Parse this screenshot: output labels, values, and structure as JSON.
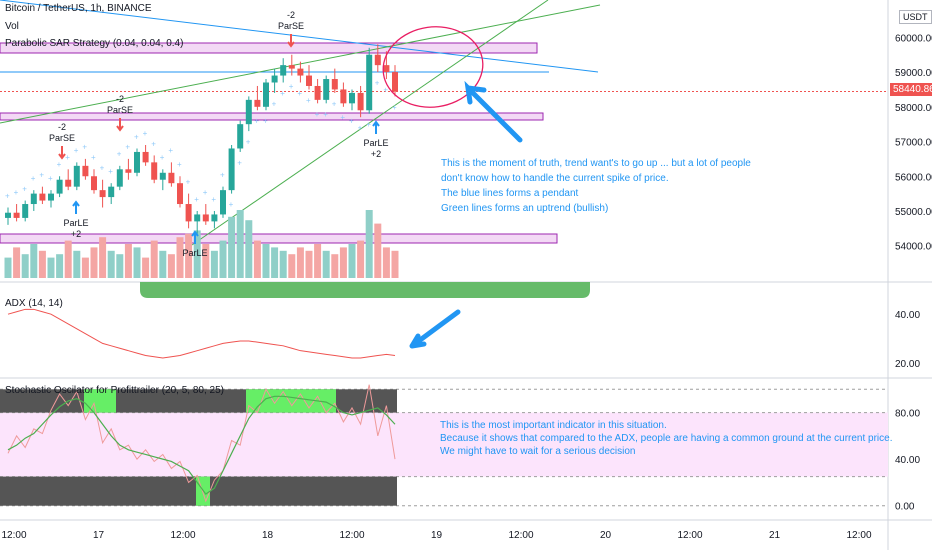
{
  "header": {
    "symbol": "Bitcoin / TetherUS, 1h, BINANCE",
    "vol_label": "Vol",
    "strategy_label": "Parabolic SAR Strategy (0.04, 0.04, 0.4)",
    "adx_label": "ADX (14, 14)",
    "stoch_label": "Stochastic Oscilator for Profittrailer (20, 5, 80, 25)",
    "currency_box": "USDT"
  },
  "price_axis": {
    "ticks": [
      "60000.00",
      "59000.00",
      "58000.00",
      "57000.00",
      "56000.00",
      "55000.00",
      "54000.00"
    ],
    "tick_values": [
      60000,
      59000,
      58000,
      57000,
      56000,
      55000,
      54000
    ],
    "current_price": "58440.86"
  },
  "adx_axis": {
    "ticks": [
      "40.00",
      "20.00"
    ],
    "tick_values": [
      40,
      20
    ]
  },
  "stoch_axis": {
    "ticks": [
      "80.00",
      "40.00",
      "0.00"
    ],
    "tick_values": [
      80,
      40,
      0
    ]
  },
  "time_axis": {
    "labels": [
      "12:00",
      "17",
      "12:00",
      "18",
      "12:00",
      "19",
      "12:00",
      "20",
      "12:00",
      "21",
      "12:00"
    ]
  },
  "signals": [
    {
      "text1": "-2",
      "text2": "ParSE"
    },
    {
      "text1": "-2",
      "text2": "ParSE"
    },
    {
      "text1": "-2",
      "text2": "ParSE"
    },
    {
      "text1": "ParLE",
      "text2": "+2"
    },
    {
      "text1": "ParLE",
      "text2": ""
    },
    {
      "text1": "ParLE",
      "text2": "+2"
    }
  ],
  "annotations": {
    "main": [
      "This is the moment of truth, trend want's to go up ... but a lot of people",
      "don't know how to handle the current spike of price.",
      "The blue lines forms a pendant",
      "Green lines forms an uptrend (bullish)"
    ],
    "stoch": [
      "This is the most important indicator in this situation.",
      "Because it shows that compared to the ADX, people are having a common ground at the current price.",
      "We might have to wait for a serious decision"
    ]
  },
  "colors": {
    "up": "#26a69a",
    "down": "#ef5350",
    "vol_up": "#8fcfc8",
    "vol_down": "#f4a6a4",
    "sar": "#90caf9",
    "annotation_text": "#2196f3",
    "arrow": "#2196f3",
    "trend_green": "#4caf50",
    "trend_blue": "#2196f3",
    "zone_purple": "#9c27b0",
    "zone_fill": "#f3d9f5",
    "adx_line": "#ef5350",
    "stoch_k": "#4caf50",
    "stoch_d": "#ef9a9a",
    "stoch_bg": "#fce4fc",
    "stoch_block_dark": "#555555",
    "stoch_block_green": "#66ee66",
    "circle": "#e91e63",
    "green_callout": "#66bb6a"
  },
  "chart_data": {
    "type": "candlestick",
    "symbol": "Bitcoin / TetherUS",
    "interval": "1h",
    "exchange": "BINANCE",
    "price_ylim": [
      53300,
      60500
    ],
    "candles": [
      [
        54800,
        55100,
        54600,
        54950
      ],
      [
        54950,
        55200,
        54700,
        54800
      ],
      [
        54800,
        55300,
        54700,
        55200
      ],
      [
        55200,
        55600,
        55000,
        55500
      ],
      [
        55500,
        55700,
        55200,
        55300
      ],
      [
        55300,
        55600,
        55100,
        55500
      ],
      [
        55500,
        56000,
        55400,
        55900
      ],
      [
        55900,
        56200,
        55600,
        55700
      ],
      [
        55700,
        56400,
        55600,
        56300
      ],
      [
        56300,
        56500,
        55900,
        56000
      ],
      [
        56000,
        56200,
        55500,
        55600
      ],
      [
        55600,
        55900,
        55100,
        55400
      ],
      [
        55400,
        55800,
        55200,
        55700
      ],
      [
        55700,
        56300,
        55600,
        56200
      ],
      [
        56200,
        56500,
        55900,
        56100
      ],
      [
        56100,
        56800,
        56000,
        56700
      ],
      [
        56700,
        56900,
        56300,
        56400
      ],
      [
        56400,
        56600,
        55800,
        55900
      ],
      [
        55900,
        56200,
        55600,
        56100
      ],
      [
        56100,
        56400,
        55700,
        55800
      ],
      [
        55800,
        56000,
        55100,
        55200
      ],
      [
        55200,
        55500,
        54500,
        54700
      ],
      [
        54700,
        55000,
        54300,
        54900
      ],
      [
        54900,
        55200,
        54600,
        54700
      ],
      [
        54700,
        55000,
        54500,
        54900
      ],
      [
        54900,
        55700,
        54800,
        55600
      ],
      [
        55600,
        56900,
        55500,
        56800
      ],
      [
        56800,
        57600,
        56700,
        57500
      ],
      [
        57500,
        58300,
        57300,
        58200
      ],
      [
        58200,
        58600,
        57900,
        58000
      ],
      [
        58000,
        58800,
        57900,
        58700
      ],
      [
        58700,
        59100,
        58400,
        58900
      ],
      [
        58900,
        59400,
        58700,
        59200
      ],
      [
        59200,
        59500,
        58900,
        59100
      ],
      [
        59100,
        59300,
        58700,
        58900
      ],
      [
        58900,
        59200,
        58500,
        58600
      ],
      [
        58600,
        58800,
        58100,
        58200
      ],
      [
        58200,
        58900,
        58100,
        58800
      ],
      [
        58800,
        59100,
        58400,
        58500
      ],
      [
        58500,
        58700,
        58000,
        58100
      ],
      [
        58100,
        58500,
        57900,
        58400
      ],
      [
        58400,
        58600,
        57700,
        57900
      ],
      [
        57900,
        59700,
        57800,
        59500
      ],
      [
        59500,
        59800,
        59000,
        59200
      ],
      [
        59200,
        59600,
        58800,
        59000
      ],
      [
        59000,
        59200,
        58300,
        58440
      ]
    ],
    "volume_relative": [
      0.3,
      0.45,
      0.35,
      0.5,
      0.4,
      0.3,
      0.35,
      0.55,
      0.4,
      0.3,
      0.45,
      0.6,
      0.4,
      0.35,
      0.5,
      0.45,
      0.3,
      0.55,
      0.4,
      0.35,
      0.6,
      0.65,
      0.7,
      0.5,
      0.4,
      0.55,
      0.9,
      1.0,
      0.85,
      0.55,
      0.5,
      0.45,
      0.4,
      0.35,
      0.45,
      0.4,
      0.5,
      0.4,
      0.35,
      0.45,
      0.5,
      0.55,
      1.0,
      0.8,
      0.45,
      0.4
    ],
    "adx": {
      "ylim": [
        15,
        52
      ],
      "values": [
        40,
        41,
        42,
        42,
        41,
        40,
        38,
        36,
        34,
        32,
        30,
        28,
        27,
        26,
        25,
        24,
        23,
        22.5,
        22,
        22.5,
        23,
        24,
        25,
        26,
        27,
        28,
        28.5,
        29,
        29,
        28.5,
        28,
        27.5,
        27,
        26,
        25,
        24.5,
        24,
        23.5,
        23,
        22.5,
        22,
        22,
        22.5,
        23,
        23.5,
        23
      ]
    },
    "stochastic": {
      "ylim": [
        -8,
        108
      ],
      "k": [
        48,
        52,
        58,
        62,
        70,
        78,
        85,
        90,
        92,
        88,
        80,
        70,
        60,
        52,
        48,
        46,
        44,
        42,
        40,
        38,
        34,
        30,
        20,
        10,
        15,
        30,
        45,
        60,
        75,
        85,
        92,
        94,
        94,
        93,
        92,
        91,
        90,
        89,
        85,
        80,
        78,
        80,
        82,
        84,
        78,
        70
      ],
      "d": [
        45,
        60,
        50,
        66,
        62,
        82,
        96,
        86,
        98,
        74,
        88,
        54,
        66,
        48,
        52,
        40,
        48,
        38,
        44,
        32,
        38,
        20,
        26,
        4,
        22,
        30,
        56,
        52,
        86,
        80,
        100,
        88,
        98,
        86,
        96,
        84,
        94,
        80,
        88,
        72,
        84,
        70,
        104,
        60,
        86,
        40
      ]
    }
  }
}
